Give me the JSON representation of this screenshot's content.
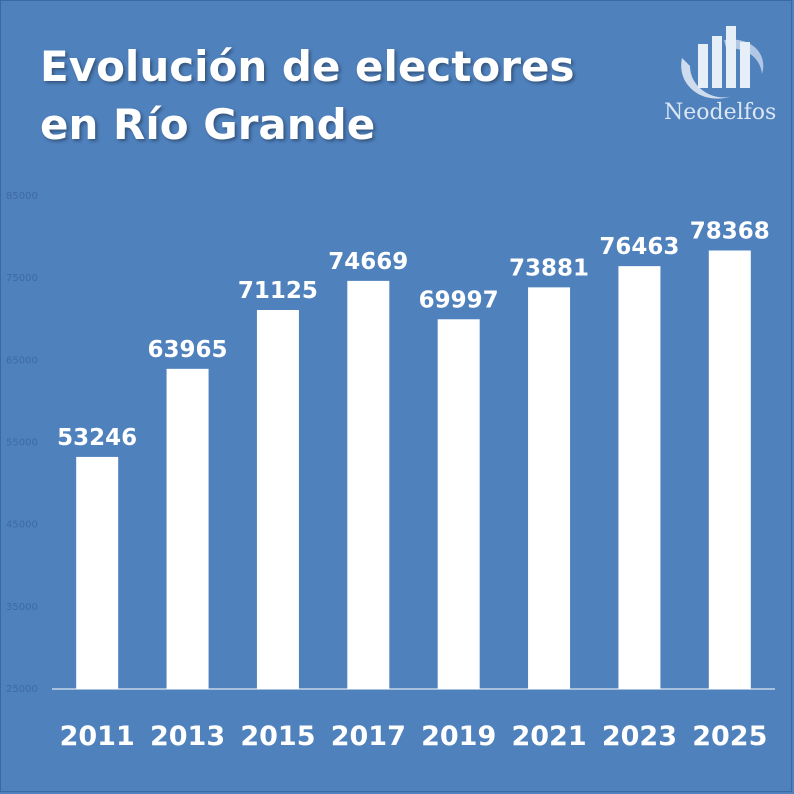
{
  "title_lines": [
    "Evolución de electores",
    "en Río Grande"
  ],
  "brand": "Neodelfos",
  "colors": {
    "background": "#4f81bd",
    "bar": "#ffffff",
    "text": "#ffffff",
    "axis_label": "#3e6aa3"
  },
  "chart_data": {
    "type": "bar",
    "title": "Evolución de electores en Río Grande",
    "categories": [
      "2011",
      "2013",
      "2015",
      "2017",
      "2019",
      "2021",
      "2023",
      "2025"
    ],
    "values": [
      53246,
      63965,
      71125,
      74669,
      69997,
      73881,
      76463,
      78368
    ],
    "yticks": [
      "25000",
      "35000",
      "45000",
      "55000",
      "65000",
      "75000",
      "85000"
    ],
    "ylim": [
      25000,
      85000
    ],
    "xlabel": "",
    "ylabel": "",
    "grid": false,
    "legend": "none"
  }
}
